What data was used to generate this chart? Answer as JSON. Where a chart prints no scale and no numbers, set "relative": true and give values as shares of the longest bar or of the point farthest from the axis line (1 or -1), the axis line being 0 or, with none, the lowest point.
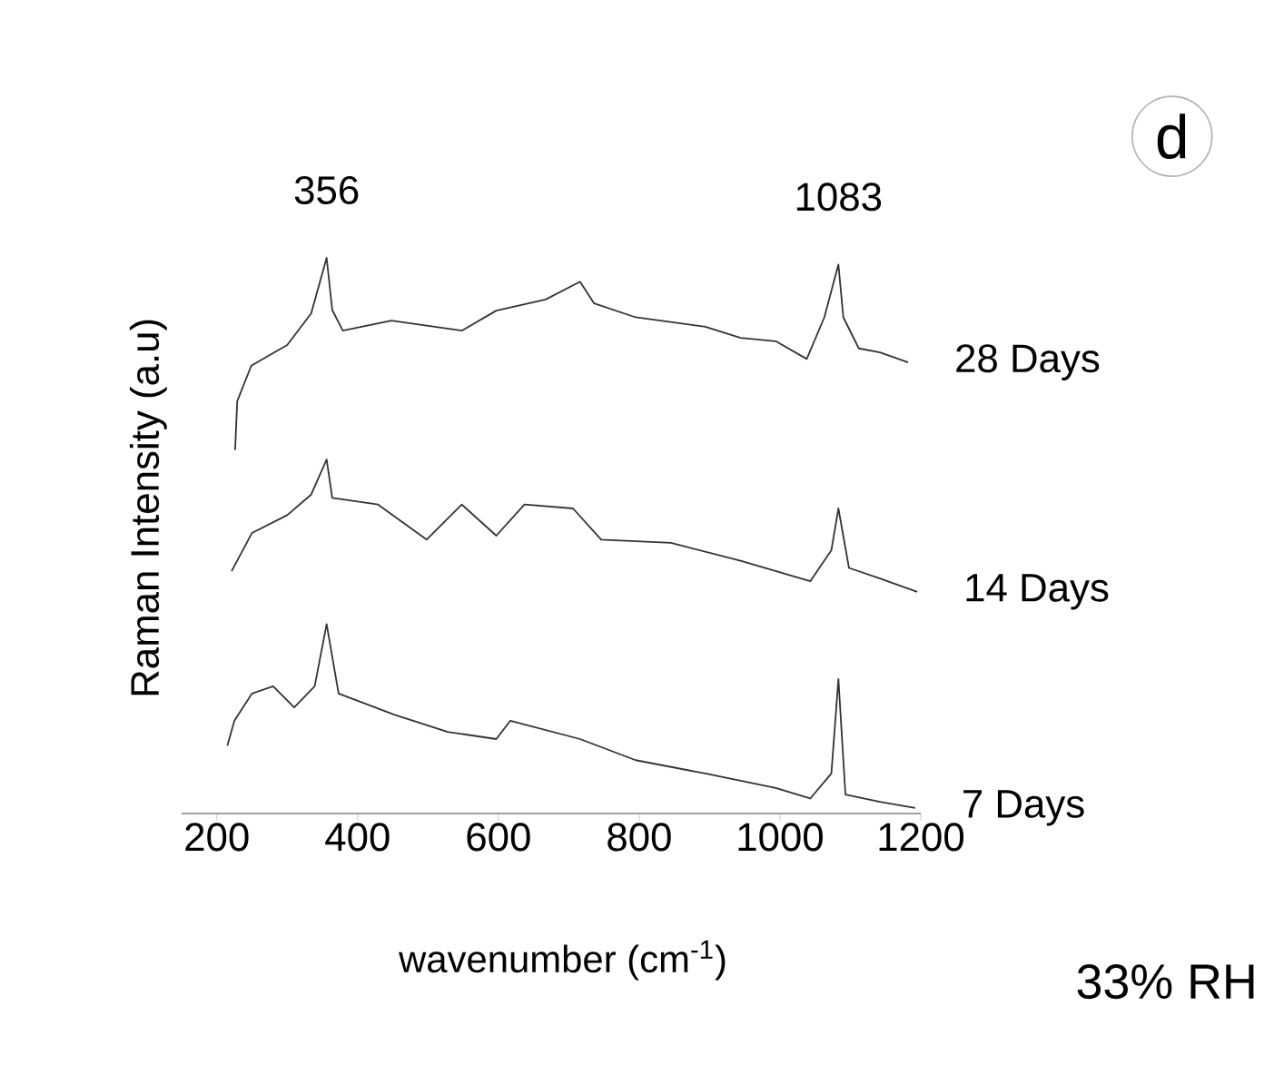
{
  "chart_data": {
    "type": "line",
    "relative": true,
    "xlabel": "wavenumber (cm$^{-1}$)",
    "ylabel": "Raman Intensity (a.u)",
    "xlim": [
      150,
      1200
    ],
    "xticks": [
      200,
      400,
      600,
      800,
      1000,
      1200
    ],
    "annotations": [
      {
        "text": "356",
        "x": 356,
        "y": 1.0
      },
      {
        "text": "1083",
        "x": 1083,
        "y": 0.988
      },
      "d",
      "33% RH"
    ],
    "series": [
      {
        "name": "28 Days",
        "color": "#333333",
        "x": [
          226,
          229,
          249,
          300,
          334,
          356,
          364,
          379,
          448,
          548,
          597,
          667,
          716,
          736,
          795,
          894,
          944,
          994,
          1038,
          1063,
          1083,
          1090,
          1112,
          1142,
          1182
        ],
        "values": [
          0.654,
          0.742,
          0.806,
          0.843,
          0.9,
          1.0,
          0.906,
          0.869,
          0.887,
          0.869,
          0.905,
          0.925,
          0.957,
          0.918,
          0.893,
          0.876,
          0.856,
          0.85,
          0.818,
          0.893,
          0.988,
          0.893,
          0.837,
          0.83,
          0.812
        ]
      },
      {
        "name": "14 Days",
        "color": "#333333",
        "x": [
          221,
          250,
          300,
          334,
          356,
          364,
          429,
          498,
          548,
          597,
          637,
          706,
          746,
          845,
          944,
          1043,
          1073,
          1083,
          1098,
          1142,
          1195
        ],
        "values": [
          0.436,
          0.505,
          0.537,
          0.574,
          0.637,
          0.568,
          0.556,
          0.493,
          0.556,
          0.5,
          0.556,
          0.549,
          0.493,
          0.487,
          0.455,
          0.418,
          0.474,
          0.549,
          0.442,
          0.423,
          0.399
        ]
      },
      {
        "name": "7 Days",
        "color": "#333333",
        "x": [
          215,
          225,
          250,
          280,
          310,
          339,
          356,
          373,
          452,
          528,
          597,
          617,
          716,
          795,
          894,
          994,
          1043,
          1073,
          1083,
          1093,
          1142,
          1192
        ],
        "values": [
          0.122,
          0.167,
          0.216,
          0.229,
          0.191,
          0.229,
          0.341,
          0.216,
          0.178,
          0.147,
          0.134,
          0.167,
          0.134,
          0.096,
          0.072,
          0.046,
          0.027,
          0.072,
          0.242,
          0.034,
          0.021,
          0.01
        ]
      }
    ]
  }
}
